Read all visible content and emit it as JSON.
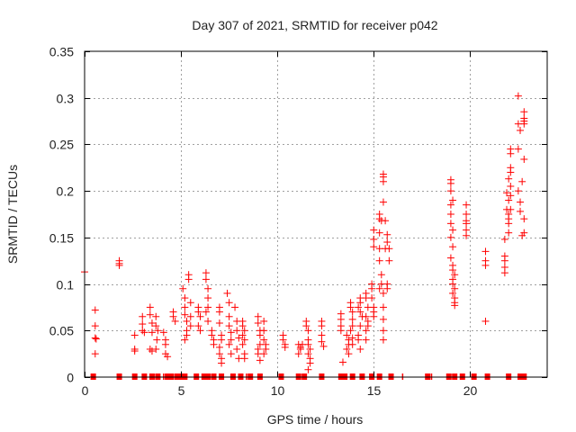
{
  "chart_data": {
    "type": "scatter",
    "title": "Day 307 of 2021, SRMTID for receiver p042",
    "xlabel": "GPS time / hours",
    "ylabel": "SRMTID / TECUs",
    "xlim": [
      0,
      24
    ],
    "ylim": [
      0,
      0.35
    ],
    "xticks": [
      0,
      5,
      10,
      15,
      20
    ],
    "xtick_labels": [
      "0",
      "5",
      "10",
      "15",
      "20"
    ],
    "yticks": [
      0,
      0.05,
      0.1,
      0.15,
      0.2,
      0.25,
      0.3,
      0.35
    ],
    "ytick_labels": [
      "0",
      "0.05",
      "0.1",
      "0.15",
      "0.2",
      "0.25",
      "0.3",
      "0.35"
    ],
    "grid": true,
    "legend": "none",
    "marker_color": "#ff0000",
    "series": [
      {
        "name": "SRMTID",
        "marker": "plus",
        "points": [
          [
            0.0,
            0.113
          ],
          [
            0.55,
            0.072
          ],
          [
            0.55,
            0.055
          ],
          [
            0.55,
            0.042
          ],
          [
            0.6,
            0.041
          ],
          [
            0.55,
            0.025
          ],
          [
            1.8,
            0.125
          ],
          [
            1.8,
            0.122
          ],
          [
            1.8,
            0.12
          ],
          [
            2.6,
            0.045
          ],
          [
            2.6,
            0.03
          ],
          [
            2.6,
            0.028
          ],
          [
            3.0,
            0.065
          ],
          [
            3.0,
            0.057
          ],
          [
            3.0,
            0.05
          ],
          [
            3.1,
            0.048
          ],
          [
            3.4,
            0.075
          ],
          [
            3.4,
            0.067
          ],
          [
            3.5,
            0.058
          ],
          [
            3.5,
            0.048
          ],
          [
            3.4,
            0.03
          ],
          [
            3.5,
            0.028
          ],
          [
            3.7,
            0.065
          ],
          [
            3.7,
            0.055
          ],
          [
            3.8,
            0.05
          ],
          [
            3.75,
            0.04
          ],
          [
            3.7,
            0.03
          ],
          [
            4.1,
            0.048
          ],
          [
            4.2,
            0.04
          ],
          [
            4.2,
            0.035
          ],
          [
            4.2,
            0.025
          ],
          [
            4.3,
            0.022
          ],
          [
            4.6,
            0.07
          ],
          [
            4.6,
            0.065
          ],
          [
            4.7,
            0.06
          ],
          [
            5.1,
            0.095
          ],
          [
            5.2,
            0.085
          ],
          [
            5.2,
            0.075
          ],
          [
            5.2,
            0.067
          ],
          [
            5.3,
            0.06
          ],
          [
            5.3,
            0.05
          ],
          [
            5.3,
            0.045
          ],
          [
            5.2,
            0.04
          ],
          [
            5.4,
            0.11
          ],
          [
            5.4,
            0.105
          ],
          [
            5.5,
            0.08
          ],
          [
            5.5,
            0.065
          ],
          [
            5.5,
            0.055
          ],
          [
            5.9,
            0.075
          ],
          [
            5.9,
            0.07
          ],
          [
            6.0,
            0.065
          ],
          [
            5.9,
            0.055
          ],
          [
            6.0,
            0.05
          ],
          [
            6.3,
            0.112
          ],
          [
            6.3,
            0.105
          ],
          [
            6.4,
            0.095
          ],
          [
            6.4,
            0.085
          ],
          [
            6.4,
            0.075
          ],
          [
            6.3,
            0.07
          ],
          [
            6.4,
            0.06
          ],
          [
            6.6,
            0.05
          ],
          [
            6.6,
            0.045
          ],
          [
            6.7,
            0.04
          ],
          [
            6.7,
            0.035
          ],
          [
            7.0,
            0.075
          ],
          [
            7.0,
            0.07
          ],
          [
            7.0,
            0.058
          ],
          [
            7.1,
            0.045
          ],
          [
            7.1,
            0.04
          ],
          [
            7.0,
            0.032
          ],
          [
            7.0,
            0.025
          ],
          [
            7.1,
            0.02
          ],
          [
            7.1,
            0.015
          ],
          [
            7.4,
            0.09
          ],
          [
            7.5,
            0.08
          ],
          [
            7.5,
            0.065
          ],
          [
            7.5,
            0.055
          ],
          [
            7.6,
            0.048
          ],
          [
            7.6,
            0.04
          ],
          [
            7.5,
            0.035
          ],
          [
            7.6,
            0.025
          ],
          [
            7.8,
            0.075
          ],
          [
            7.9,
            0.06
          ],
          [
            7.9,
            0.05
          ],
          [
            8.0,
            0.042
          ],
          [
            7.9,
            0.03
          ],
          [
            8.0,
            0.02
          ],
          [
            8.2,
            0.06
          ],
          [
            8.2,
            0.055
          ],
          [
            8.3,
            0.05
          ],
          [
            8.2,
            0.045
          ],
          [
            8.3,
            0.04
          ],
          [
            8.2,
            0.035
          ],
          [
            8.3,
            0.025
          ],
          [
            8.3,
            0.02
          ],
          [
            9.0,
            0.065
          ],
          [
            9.0,
            0.058
          ],
          [
            9.1,
            0.05
          ],
          [
            9.1,
            0.045
          ],
          [
            9.1,
            0.035
          ],
          [
            9.0,
            0.03
          ],
          [
            9.0,
            0.025
          ],
          [
            9.1,
            0.018
          ],
          [
            9.3,
            0.06
          ],
          [
            9.3,
            0.05
          ],
          [
            9.3,
            0.04
          ],
          [
            9.4,
            0.035
          ],
          [
            9.4,
            0.03
          ],
          [
            9.3,
            0.025
          ],
          [
            10.3,
            0.045
          ],
          [
            10.3,
            0.04
          ],
          [
            10.4,
            0.035
          ],
          [
            10.4,
            0.032
          ],
          [
            11.1,
            0.035
          ],
          [
            11.2,
            0.032
          ],
          [
            11.3,
            0.035
          ],
          [
            11.2,
            0.03
          ],
          [
            11.1,
            0.025
          ],
          [
            11.5,
            0.06
          ],
          [
            11.5,
            0.055
          ],
          [
            11.6,
            0.05
          ],
          [
            11.6,
            0.04
          ],
          [
            11.6,
            0.035
          ],
          [
            11.7,
            0.03
          ],
          [
            11.6,
            0.025
          ],
          [
            11.7,
            0.02
          ],
          [
            11.7,
            0.015
          ],
          [
            11.6,
            0.008
          ],
          [
            12.3,
            0.06
          ],
          [
            12.3,
            0.055
          ],
          [
            12.3,
            0.045
          ],
          [
            12.3,
            0.038
          ],
          [
            12.4,
            0.033
          ],
          [
            13.3,
            0.068
          ],
          [
            13.3,
            0.062
          ],
          [
            13.3,
            0.055
          ],
          [
            13.3,
            0.05
          ],
          [
            13.4,
            0.016
          ],
          [
            13.6,
            0.045
          ],
          [
            13.7,
            0.04
          ],
          [
            13.7,
            0.035
          ],
          [
            13.6,
            0.03
          ],
          [
            13.7,
            0.025
          ],
          [
            13.8,
            0.08
          ],
          [
            13.8,
            0.075
          ],
          [
            13.9,
            0.07
          ],
          [
            13.9,
            0.062
          ],
          [
            13.9,
            0.055
          ],
          [
            13.8,
            0.05
          ],
          [
            13.9,
            0.042
          ],
          [
            13.9,
            0.035
          ],
          [
            14.3,
            0.085
          ],
          [
            14.3,
            0.08
          ],
          [
            14.2,
            0.075
          ],
          [
            14.3,
            0.07
          ],
          [
            14.4,
            0.065
          ],
          [
            14.3,
            0.055
          ],
          [
            14.2,
            0.045
          ],
          [
            14.2,
            0.04
          ],
          [
            14.3,
            0.03
          ],
          [
            14.6,
            0.09
          ],
          [
            14.6,
            0.085
          ],
          [
            14.7,
            0.075
          ],
          [
            14.6,
            0.065
          ],
          [
            14.7,
            0.06
          ],
          [
            14.7,
            0.055
          ],
          [
            14.6,
            0.05
          ],
          [
            14.6,
            0.04
          ],
          [
            14.9,
            0.1
          ],
          [
            14.9,
            0.095
          ],
          [
            14.9,
            0.085
          ],
          [
            15.0,
            0.075
          ],
          [
            15.0,
            0.07
          ],
          [
            15.0,
            0.065
          ],
          [
            15.0,
            0.158
          ],
          [
            15.0,
            0.148
          ],
          [
            15.0,
            0.14
          ],
          [
            15.3,
            0.175
          ],
          [
            15.3,
            0.17
          ],
          [
            15.4,
            0.168
          ],
          [
            15.3,
            0.155
          ],
          [
            15.3,
            0.138
          ],
          [
            15.3,
            0.125
          ],
          [
            15.4,
            0.11
          ],
          [
            15.4,
            0.1
          ],
          [
            15.3,
            0.095
          ],
          [
            15.5,
            0.218
          ],
          [
            15.5,
            0.215
          ],
          [
            15.5,
            0.21
          ],
          [
            15.5,
            0.188
          ],
          [
            15.6,
            0.168
          ],
          [
            15.6,
            0.138
          ],
          [
            15.5,
            0.09
          ],
          [
            15.5,
            0.075
          ],
          [
            15.5,
            0.062
          ],
          [
            15.5,
            0.05
          ],
          [
            15.5,
            0.04
          ],
          [
            15.7,
            0.153
          ],
          [
            15.7,
            0.145
          ],
          [
            15.8,
            0.138
          ],
          [
            15.8,
            0.125
          ],
          [
            15.7,
            0.1
          ],
          [
            15.7,
            0.095
          ],
          [
            19.0,
            0.212
          ],
          [
            19.0,
            0.208
          ],
          [
            19.0,
            0.2
          ],
          [
            19.1,
            0.19
          ],
          [
            19.0,
            0.185
          ],
          [
            19.0,
            0.175
          ],
          [
            19.0,
            0.165
          ],
          [
            19.1,
            0.158
          ],
          [
            19.0,
            0.15
          ],
          [
            19.1,
            0.14
          ],
          [
            19.0,
            0.128
          ],
          [
            19.1,
            0.12
          ],
          [
            19.1,
            0.115
          ],
          [
            19.2,
            0.11
          ],
          [
            19.1,
            0.105
          ],
          [
            19.1,
            0.1
          ],
          [
            19.2,
            0.095
          ],
          [
            19.1,
            0.09
          ],
          [
            19.2,
            0.085
          ],
          [
            19.2,
            0.08
          ],
          [
            19.2,
            0.077
          ],
          [
            19.8,
            0.185
          ],
          [
            19.8,
            0.175
          ],
          [
            19.8,
            0.168
          ],
          [
            19.8,
            0.165
          ],
          [
            19.8,
            0.158
          ],
          [
            19.8,
            0.152
          ],
          [
            20.8,
            0.135
          ],
          [
            20.8,
            0.125
          ],
          [
            20.8,
            0.12
          ],
          [
            20.8,
            0.06
          ],
          [
            21.8,
            0.148
          ],
          [
            21.8,
            0.13
          ],
          [
            21.8,
            0.125
          ],
          [
            21.8,
            0.118
          ],
          [
            21.8,
            0.112
          ],
          [
            21.9,
            0.198
          ],
          [
            22.0,
            0.19
          ],
          [
            21.9,
            0.18
          ],
          [
            22.0,
            0.175
          ],
          [
            22.0,
            0.17
          ],
          [
            22.0,
            0.165
          ],
          [
            22.0,
            0.155
          ],
          [
            22.1,
            0.245
          ],
          [
            22.1,
            0.24
          ],
          [
            22.1,
            0.225
          ],
          [
            22.1,
            0.22
          ],
          [
            22.0,
            0.213
          ],
          [
            22.1,
            0.205
          ],
          [
            22.1,
            0.195
          ],
          [
            22.1,
            0.18
          ],
          [
            22.5,
            0.302
          ],
          [
            22.5,
            0.272
          ],
          [
            22.6,
            0.265
          ],
          [
            22.5,
            0.245
          ],
          [
            22.5,
            0.2
          ],
          [
            22.6,
            0.188
          ],
          [
            22.6,
            0.178
          ],
          [
            22.8,
            0.285
          ],
          [
            22.8,
            0.278
          ],
          [
            22.8,
            0.275
          ],
          [
            22.8,
            0.272
          ],
          [
            22.8,
            0.234
          ],
          [
            22.7,
            0.21
          ],
          [
            22.8,
            0.17
          ],
          [
            22.8,
            0.155
          ],
          [
            22.7,
            0.152
          ]
        ]
      },
      {
        "name": "zero-level markers",
        "marker": "square",
        "hours": [
          0.45,
          1.8,
          2.6,
          3.1,
          3.5,
          3.8,
          4.3,
          4.5,
          4.8,
          4.9,
          5.1,
          5.2,
          5.8,
          6.2,
          6.4,
          6.7,
          7.1,
          7.7,
          8.1,
          8.6,
          9.1,
          10.2,
          11.1,
          11.4,
          12.3,
          13.3,
          13.5,
          13.9,
          14.4,
          14.9,
          15.3,
          15.9,
          17.8,
          18.9,
          19.2,
          19.6,
          20.2,
          20.9,
          22.0,
          22.6,
          22.8
        ],
        "thin_ticks": [
          4.1,
          8.4,
          16.5,
          18.0,
          20.3
        ]
      }
    ]
  }
}
